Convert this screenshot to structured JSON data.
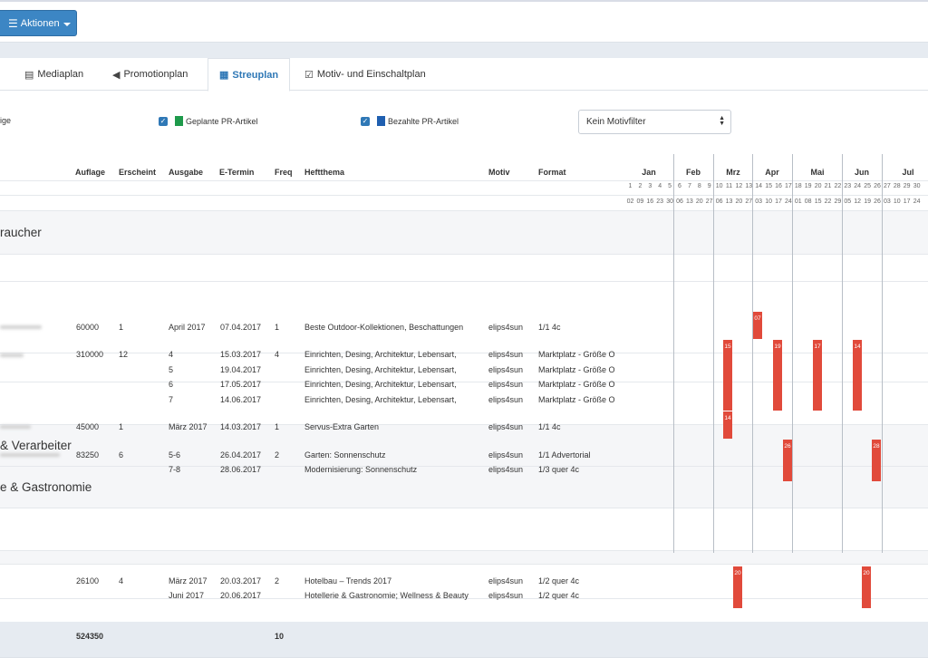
{
  "toolbar": {
    "actions_label": "Aktionen"
  },
  "tabs": [
    {
      "label": "Mediaplan"
    },
    {
      "label": "Promotionplan"
    },
    {
      "label": "Streuplan"
    },
    {
      "label": "Motiv- und Einschaltplan"
    }
  ],
  "filters": {
    "f0": "ige",
    "f1": "Geplante PR-Artikel",
    "f2": "Bezahlte PR-Artikel",
    "motiv_select": "Kein Motivfilter"
  },
  "colors": {
    "planned": "#1e9a4b",
    "paid": "#1f5fb0",
    "bar": "#e14a3b",
    "accent": "#3c86c4"
  },
  "columns": {
    "auflage": "Auflage",
    "erscheint": "Erscheint",
    "ausgabe": "Ausgabe",
    "etermin": "E-Termin",
    "freq": "Freq",
    "heftthema": "Heftthema",
    "motiv": "Motiv",
    "format": "Format"
  },
  "months": [
    "Jan",
    "Feb",
    "Mrz",
    "Apr",
    "Mai",
    "Jun",
    "Jul"
  ],
  "weeks_row1": [
    "1",
    "2",
    "3",
    "4",
    "5",
    "6",
    "7",
    "8",
    "9",
    "10",
    "11",
    "12",
    "13",
    "14",
    "15",
    "16",
    "17",
    "18",
    "19",
    "20",
    "21",
    "22",
    "23",
    "24",
    "25",
    "26",
    "27",
    "28",
    "29",
    "30"
  ],
  "weeks_row2": [
    "02",
    "09",
    "16",
    "23",
    "30",
    "06",
    "13",
    "20",
    "27",
    "06",
    "13",
    "20",
    "27",
    "03",
    "10",
    "17",
    "24",
    "01",
    "08",
    "15",
    "22",
    "29",
    "05",
    "12",
    "19",
    "26",
    "03",
    "10",
    "17",
    "24"
  ],
  "groups": {
    "g1": "raucher",
    "g2": "& Verarbeiter",
    "g3": "e & Gastronomie"
  },
  "rows": {
    "r1": {
      "auflage": "60000",
      "erscheint": "1",
      "ausgabe": [
        "April 2017"
      ],
      "etermin": [
        "07.04.2017"
      ],
      "freq": "1",
      "heftthema": [
        "Beste Outdoor-Kollektionen, Beschattungen"
      ],
      "motiv": [
        "elips4sun"
      ],
      "format": [
        "1/1 4c"
      ]
    },
    "r2": {
      "auflage": "310000",
      "erscheint": "12",
      "ausgabe": [
        "4",
        "5",
        "6",
        "7"
      ],
      "etermin": [
        "15.03.2017",
        "19.04.2017",
        "17.05.2017",
        "14.06.2017"
      ],
      "freq": "4",
      "heftthema": [
        "Einrichten, Desing, Architektur, Lebensart,",
        "Einrichten, Desing, Architektur, Lebensart,",
        "Einrichten, Desing, Architektur, Lebensart,",
        "Einrichten, Desing, Architektur, Lebensart,"
      ],
      "motiv": [
        "elips4sun",
        "elips4sun",
        "elips4sun",
        "elips4sun"
      ],
      "format": [
        "Marktplatz - Größe O",
        "Marktplatz - Größe O",
        "Marktplatz - Größe O",
        "Marktplatz - Größe O"
      ]
    },
    "r3": {
      "auflage": "45000",
      "erscheint": "1",
      "ausgabe": [
        "März 2017"
      ],
      "etermin": [
        "14.03.2017"
      ],
      "freq": "1",
      "heftthema": [
        "Servus-Extra Garten"
      ],
      "motiv": [
        "elips4sun"
      ],
      "format": [
        "1/1 4c"
      ]
    },
    "r4": {
      "auflage": "83250",
      "erscheint": "6",
      "ausgabe": [
        "5-6",
        "7-8"
      ],
      "etermin": [
        "26.04.2017",
        "28.06.2017"
      ],
      "freq": "2",
      "heftthema": [
        "Garten: Sonnenschutz",
        "Modernisierung: Sonnenschutz"
      ],
      "motiv": [
        "elips4sun",
        "elips4sun"
      ],
      "format": [
        "1/1 Advertorial",
        "1/3 quer 4c"
      ]
    },
    "r5": {
      "auflage": "26100",
      "erscheint": "4",
      "ausgabe": [
        "März 2017",
        "Juni 2017"
      ],
      "etermin": [
        "20.03.2017",
        "20.06.2017"
      ],
      "freq": "2",
      "heftthema": [
        "Hotelbau – Trends 2017",
        "Hotellerie & Gastronomie; Wellness & Beauty"
      ],
      "motiv": [
        "elips4sun",
        "elips4sun"
      ],
      "format": [
        "1/2 quer 4c",
        "1/2 quer 4c"
      ]
    }
  },
  "bars": {
    "b1": "07",
    "b2": "15",
    "b3": "19",
    "b4": "17",
    "b5": "14",
    "b6": "14",
    "b7": "26",
    "b8": "28",
    "b9": "20",
    "b10": "20"
  },
  "totals": {
    "auflage": "524350",
    "freq": "10"
  }
}
